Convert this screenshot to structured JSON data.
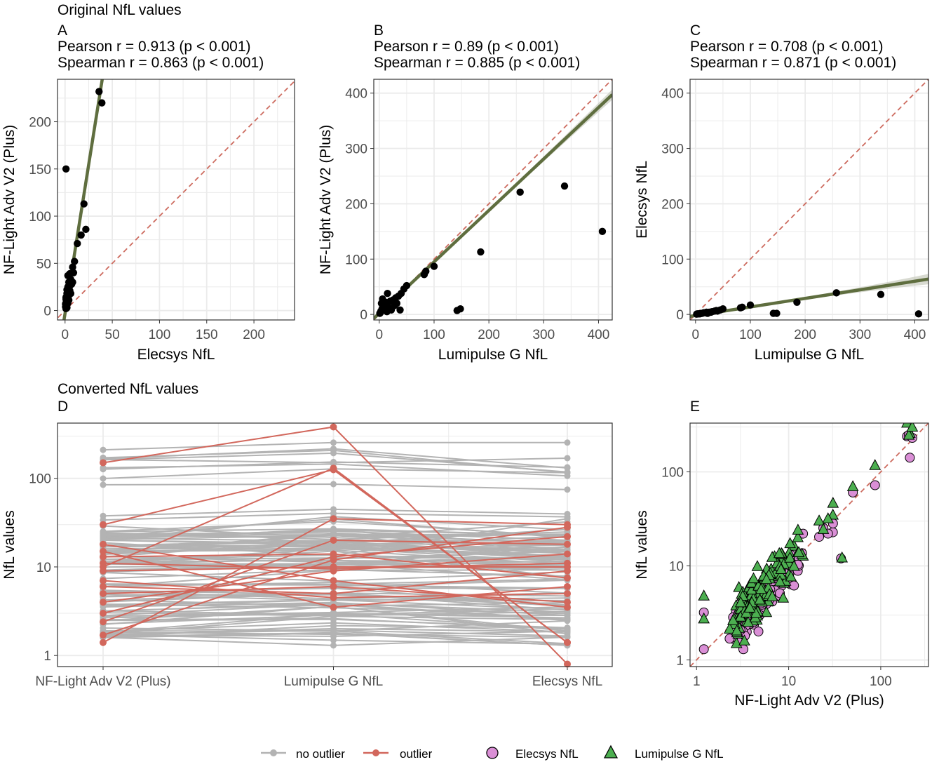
{
  "section_titles": {
    "top": "Original NfL values",
    "bottom": "Converted NfL values"
  },
  "colors": {
    "grid": "#ebebeb",
    "fit": "#5f6e3f",
    "ribbon": "#c8cbbd",
    "identity": "#cd6b5f",
    "no_outlier": "#b3b3b3",
    "outlier": "#d2675c",
    "elecsys_fill": "#da8fd6",
    "lumi_fill": "#4caf50",
    "point": "#000000"
  },
  "chart_data": [
    {
      "id": "A",
      "type": "scatter",
      "label": "A",
      "stats": [
        "Pearson r = 0.913 (p < 0.001)",
        "Spearman r = 0.863 (p < 0.001)"
      ],
      "xlabel": "Elecsys NfL",
      "ylabel": "NF-Light Adv V2 (Plus)",
      "xlim": [
        -8,
        243
      ],
      "ylim": [
        -10,
        245
      ],
      "xticks": [
        0,
        50,
        100,
        150,
        200
      ],
      "yticks": [
        0,
        50,
        100,
        150,
        200
      ],
      "tick_labels_x": [
        "0",
        "50",
        "100",
        "150",
        "200"
      ],
      "tick_labels_y": [
        "0",
        "50",
        "100",
        "150",
        "200"
      ],
      "fit": {
        "slope": 6.3,
        "intercept": -3,
        "label": "linear fit"
      },
      "identity": true,
      "points": [
        [
          1,
          150
        ],
        [
          36,
          232
        ],
        [
          39,
          220
        ],
        [
          22,
          86
        ],
        [
          17,
          80
        ],
        [
          13,
          71
        ],
        [
          20,
          113
        ],
        [
          10,
          52
        ],
        [
          8,
          46
        ],
        [
          5,
          39
        ],
        [
          3,
          37
        ],
        [
          9,
          40
        ],
        [
          6,
          33
        ],
        [
          4,
          30
        ],
        [
          3,
          25
        ],
        [
          2,
          22
        ],
        [
          7,
          28
        ],
        [
          5,
          21
        ],
        [
          2,
          18
        ],
        [
          4,
          16
        ],
        [
          1,
          14
        ],
        [
          3,
          13
        ],
        [
          2,
          10
        ],
        [
          1,
          8
        ],
        [
          2,
          6
        ],
        [
          0.5,
          4
        ],
        [
          1,
          2
        ],
        [
          3,
          8
        ],
        [
          6,
          18
        ],
        [
          4,
          11
        ],
        [
          2,
          3
        ],
        [
          8,
          30
        ],
        [
          5,
          26
        ],
        [
          1,
          12
        ],
        [
          0.5,
          7
        ]
      ]
    },
    {
      "id": "B",
      "type": "scatter",
      "label": "B",
      "stats": [
        "Pearson r = 0.89 (p < 0.001)",
        "Spearman r = 0.885 (p < 0.001)"
      ],
      "xlabel": "Lumipulse G NfL",
      "ylabel": "NF-Light Adv V2 (Plus)",
      "xlim": [
        -10,
        425
      ],
      "ylim": [
        -10,
        425
      ],
      "xticks": [
        0,
        100,
        200,
        300,
        400
      ],
      "yticks": [
        0,
        100,
        200,
        300,
        400
      ],
      "tick_labels_x": [
        "0",
        "100",
        "200",
        "300",
        "400"
      ],
      "tick_labels_y": [
        "0",
        "100",
        "200",
        "300",
        "400"
      ],
      "fit": {
        "slope": 0.93,
        "intercept": 2,
        "label": "linear fit"
      },
      "identity": true,
      "points": [
        [
          407,
          150
        ],
        [
          338,
          232
        ],
        [
          257,
          221
        ],
        [
          185,
          113
        ],
        [
          148,
          10
        ],
        [
          142,
          7
        ],
        [
          100,
          87
        ],
        [
          85,
          78
        ],
        [
          82,
          72
        ],
        [
          50,
          52
        ],
        [
          45,
          46
        ],
        [
          40,
          38
        ],
        [
          35,
          33
        ],
        [
          30,
          30
        ],
        [
          25,
          26
        ],
        [
          20,
          24
        ],
        [
          15,
          38
        ],
        [
          12,
          22
        ],
        [
          10,
          18
        ],
        [
          8,
          14
        ],
        [
          5,
          10
        ],
        [
          3,
          6
        ],
        [
          2,
          3
        ],
        [
          18,
          12
        ],
        [
          22,
          8
        ],
        [
          28,
          16
        ],
        [
          6,
          28
        ],
        [
          4,
          20
        ],
        [
          1,
          2
        ],
        [
          38,
          8
        ],
        [
          14,
          5
        ],
        [
          32,
          20
        ]
      ]
    },
    {
      "id": "C",
      "type": "scatter",
      "label": "C",
      "stats": [
        "Pearson r = 0.708 (p < 0.001)",
        "Spearman r = 0.871 (p < 0.001)"
      ],
      "xlabel": "Lumipulse G NfL",
      "ylabel": "Elecsys NfL",
      "xlim": [
        -10,
        425
      ],
      "ylim": [
        -10,
        425
      ],
      "xticks": [
        0,
        100,
        200,
        300,
        400
      ],
      "yticks": [
        0,
        100,
        200,
        300,
        400
      ],
      "tick_labels_x": [
        "0",
        "100",
        "200",
        "300",
        "400"
      ],
      "tick_labels_y": [
        "0",
        "100",
        "200",
        "300",
        "400"
      ],
      "fit": {
        "slope": 0.155,
        "intercept": -2,
        "label": "linear fit"
      },
      "identity": true,
      "points": [
        [
          407,
          1
        ],
        [
          338,
          36
        ],
        [
          257,
          39
        ],
        [
          185,
          22
        ],
        [
          148,
          2
        ],
        [
          142,
          2
        ],
        [
          100,
          17
        ],
        [
          85,
          13
        ],
        [
          82,
          12
        ],
        [
          50,
          10
        ],
        [
          45,
          8
        ],
        [
          40,
          6
        ],
        [
          35,
          6
        ],
        [
          30,
          5
        ],
        [
          25,
          4
        ],
        [
          20,
          4
        ],
        [
          15,
          3
        ],
        [
          12,
          2
        ],
        [
          10,
          2
        ],
        [
          8,
          1
        ],
        [
          5,
          1
        ],
        [
          3,
          1
        ],
        [
          2,
          0.5
        ],
        [
          18,
          3
        ],
        [
          22,
          2
        ],
        [
          28,
          4
        ],
        [
          6,
          1
        ],
        [
          38,
          7
        ]
      ]
    },
    {
      "id": "D",
      "type": "line",
      "label": "D",
      "scale_y": "log",
      "xlabel": "",
      "ylabel": "NfL values",
      "categories": [
        "NF-Light Adv V2 (Plus)",
        "Lumipulse G NfL",
        "Elecsys NfL"
      ],
      "ylim": [
        0.75,
        420
      ],
      "yticks": [
        1,
        10,
        100
      ],
      "tick_labels_y": [
        "1",
        "10",
        "100"
      ],
      "series": [
        {
          "group": "outlier",
          "values": [
            150,
            380,
            0.8
          ]
        },
        {
          "group": "outlier",
          "values": [
            30,
            125,
            1.4
          ]
        },
        {
          "group": "outlier",
          "values": [
            10,
            130,
            1.4
          ]
        },
        {
          "group": "outlier",
          "values": [
            1.4,
            35,
            30
          ]
        },
        {
          "group": "outlier",
          "values": [
            1.7,
            12,
            28
          ]
        },
        {
          "group": "outlier",
          "values": [
            4,
            9,
            14
          ]
        },
        {
          "group": "outlier",
          "values": [
            6,
            5,
            9
          ]
        },
        {
          "group": "outlier",
          "values": [
            7,
            4.5,
            5
          ]
        },
        {
          "group": "outlier",
          "values": [
            11,
            9.5,
            11
          ]
        },
        {
          "group": "outlier",
          "values": [
            18,
            7,
            3.5
          ]
        },
        {
          "group": "outlier",
          "values": [
            13,
            14,
            7.5
          ]
        },
        {
          "group": "outlier",
          "values": [
            9,
            10,
            10
          ]
        },
        {
          "group": "outlier",
          "values": [
            5,
            6,
            4
          ]
        },
        {
          "group": "outlier",
          "values": [
            2.4,
            20,
            18
          ]
        },
        {
          "group": "outlier",
          "values": [
            15,
            3.5,
            6
          ]
        },
        {
          "group": "outlier",
          "values": [
            3,
            13,
            22
          ]
        }
      ],
      "gray_band": {
        "group": "no outlier",
        "count": 110,
        "min": 1.3,
        "max": 230
      }
    },
    {
      "id": "E",
      "type": "scatter",
      "label": "E",
      "scale_x": "log",
      "scale_y": "log",
      "xlabel": "NF-Light Adv V2 (Plus)",
      "ylabel": "NfL values",
      "xlim": [
        1,
        330
      ],
      "ylim": [
        1,
        330
      ],
      "xticks": [
        1,
        10,
        100
      ],
      "yticks": [
        1,
        10,
        100
      ],
      "tick_labels_x": [
        "1",
        "10",
        "100"
      ],
      "tick_labels_y": [
        "1",
        "10",
        "100"
      ],
      "identity": true,
      "series": [
        {
          "name": "Elecsys NfL",
          "marker": "circle"
        },
        {
          "name": "Lumipulse G NfL",
          "marker": "triangle"
        }
      ]
    }
  ],
  "legend": {
    "line_items": [
      "no outlier",
      "outlier"
    ],
    "marker_items": [
      "Elecsys NfL",
      "Lumipulse G NfL"
    ]
  }
}
